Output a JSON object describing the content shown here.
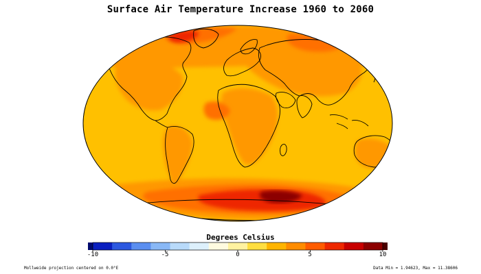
{
  "title": "Surface Air Temperature Increase 1960 to 2060",
  "colorbar": {
    "label": "Degrees Celsius",
    "min": -10,
    "max": 10,
    "ticks": [
      "-10",
      "-5",
      "0",
      "5",
      "10"
    ],
    "colors": [
      "#000a6e",
      "#0a1fc0",
      "#2c58e0",
      "#5a8ef0",
      "#89b8f6",
      "#b8dafa",
      "#ddf0fc",
      "#fffbe0",
      "#fff2a0",
      "#ffde40",
      "#ffb400",
      "#ff8c00",
      "#ff5c00",
      "#ee2800",
      "#c80000",
      "#8c0000",
      "#4a0000"
    ]
  },
  "footer": {
    "projection": "Mollweide projection centered on 0.0°E",
    "data_range": "Data Min = 1.94623, Max = 11.38606"
  },
  "map": {
    "projection": "Mollweide",
    "center_longitude": 0.0,
    "ocean_color": "#ffc000",
    "land_color": "#ff9800",
    "warm_color": "#ff7000",
    "hot_color": "#ee2800",
    "hottest_color": "#8c0000",
    "coastline_color": "#000000"
  }
}
